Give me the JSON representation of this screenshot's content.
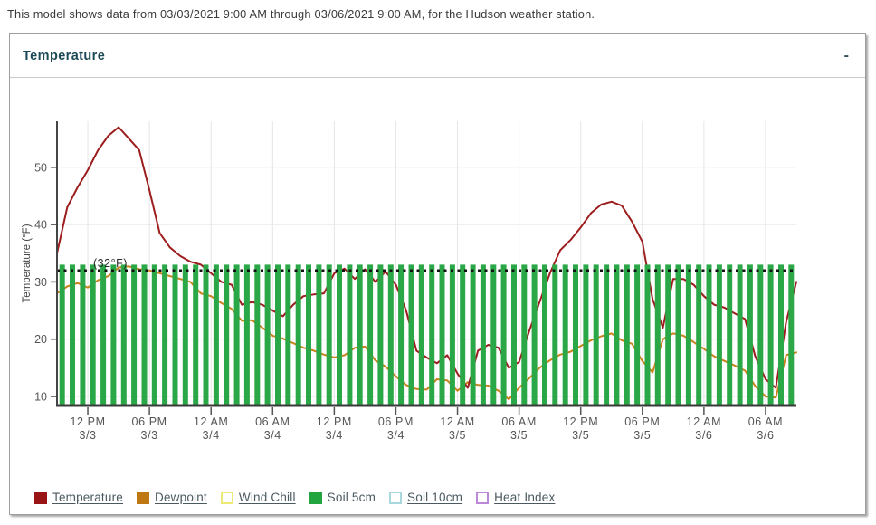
{
  "page": {
    "description": "This model shows data from 03/03/2021 9:00 AM through 03/06/2021 9:00 AM, for the Hudson weather station."
  },
  "panel": {
    "title": "Temperature",
    "collapse_label": "-"
  },
  "chart_data": {
    "type": "line+bar",
    "title": "Temperature",
    "station": "Hudson",
    "xlabel": "",
    "ylabel": "Temperature (°F)",
    "ylim": [
      7,
      58
    ],
    "grid": true,
    "x_range": {
      "start": "03/03/2021 9:00 AM",
      "end": "03/06/2021 9:00 AM",
      "hours": 72,
      "step_hours": 1
    },
    "y_ticks": [
      10,
      20,
      30,
      40,
      50
    ],
    "x_ticks": [
      {
        "time": "12 PM",
        "date": "3/3",
        "hour": 3
      },
      {
        "time": "06 PM",
        "date": "3/3",
        "hour": 9
      },
      {
        "time": "12 AM",
        "date": "3/4",
        "hour": 15
      },
      {
        "time": "06 AM",
        "date": "3/4",
        "hour": 21
      },
      {
        "time": "12 PM",
        "date": "3/4",
        "hour": 27
      },
      {
        "time": "06 PM",
        "date": "3/4",
        "hour": 33
      },
      {
        "time": "12 AM",
        "date": "3/5",
        "hour": 39
      },
      {
        "time": "06 AM",
        "date": "3/5",
        "hour": 45
      },
      {
        "time": "12 PM",
        "date": "3/5",
        "hour": 51
      },
      {
        "time": "06 PM",
        "date": "3/5",
        "hour": 57
      },
      {
        "time": "12 AM",
        "date": "3/6",
        "hour": 63
      },
      {
        "time": "06 AM",
        "date": "3/6",
        "hour": 69
      }
    ],
    "reference_line": {
      "value": 32,
      "label": "(32°F)",
      "color": "#111111"
    },
    "series": [
      {
        "name": "Soil 5cm",
        "type": "bar",
        "color": "#2aa747",
        "constant_value": 33,
        "bar_count": 72
      },
      {
        "name": "Dewpoint",
        "type": "line",
        "color": "#c9831e",
        "values": [
          28,
          29.2,
          29.8,
          29,
          30.3,
          31,
          32.5,
          32.7,
          32.2,
          32,
          31.5,
          31,
          30.5,
          30,
          28,
          27.5,
          26.3,
          25.3,
          23.2,
          23.3,
          22,
          20.6,
          20.1,
          19.3,
          18.5,
          18,
          17.3,
          16.8,
          17.2,
          18.5,
          18.7,
          16.3,
          15.2,
          13.5,
          12,
          11.3,
          11.2,
          13,
          12.8,
          11,
          12.5,
          12,
          11.9,
          11,
          9.5,
          11.5,
          13.2,
          15,
          16.3,
          17.3,
          17.8,
          18.8,
          19.8,
          20.5,
          21,
          19.8,
          19.2,
          16.2,
          14.2,
          20,
          21,
          20.6,
          19.5,
          18.3,
          17,
          16.2,
          15.4,
          14.5,
          11.8,
          10,
          9.8,
          17.2,
          17.7
        ]
      },
      {
        "name": "Temperature",
        "type": "line",
        "color": "#9c1d1d",
        "values": [
          35,
          43,
          46.5,
          49.5,
          53,
          55.5,
          57,
          55,
          53,
          46,
          38.5,
          36,
          34.5,
          33.5,
          33,
          31.5,
          30,
          29.5,
          26,
          26.5,
          26,
          25,
          24,
          26,
          27.5,
          27.8,
          28,
          31.5,
          32.3,
          30.5,
          32.2,
          30,
          31.8,
          29.5,
          25,
          18,
          16.8,
          15.8,
          17.2,
          14,
          11.5,
          18,
          19,
          18.5,
          15,
          16,
          21.5,
          26.5,
          31.5,
          35.5,
          37.3,
          39.5,
          42,
          43.5,
          44,
          43.3,
          40.5,
          37,
          27,
          22,
          30.5,
          30.5,
          29.5,
          27.5,
          26,
          25.5,
          24.5,
          23.5,
          17,
          13,
          11.5,
          23,
          30
        ]
      }
    ],
    "legend_position": "bottom"
  },
  "legend": {
    "items": [
      {
        "label": "Temperature",
        "fill": "#991414",
        "border": "#991414",
        "underlined": true
      },
      {
        "label": "Dewpoint",
        "fill": "#bf7712",
        "border": "#bf7712",
        "underlined": true
      },
      {
        "label": "Wind Chill",
        "fill": "#ffffff",
        "border": "#ecea74",
        "underlined": true
      },
      {
        "label": "Soil 5cm",
        "fill": "#22a53e",
        "border": "#22a53e",
        "underlined": false
      },
      {
        "label": "Soil 10cm",
        "fill": "#ffffff",
        "border": "#a9d7de",
        "underlined": true
      },
      {
        "label": "Heat Index",
        "fill": "#ffffff",
        "border": "#bb87d7",
        "underlined": true
      }
    ]
  },
  "style": {
    "grid_color": "#e5e5e5",
    "axis_color": "#454545",
    "tick_label_color": "#555555",
    "axis_title_color": "#444444"
  }
}
